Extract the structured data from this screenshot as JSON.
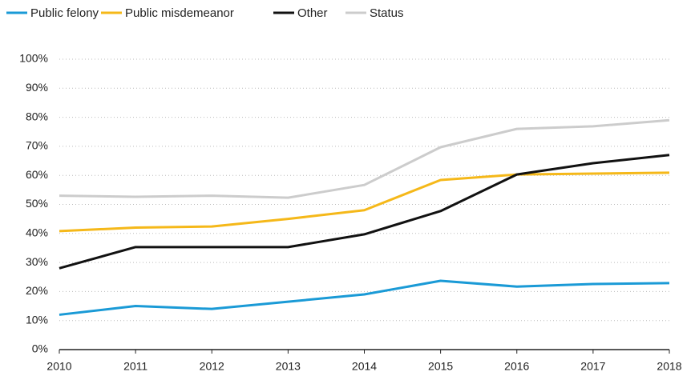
{
  "chart_data": {
    "type": "line",
    "x": [
      2010,
      2011,
      2012,
      2013,
      2014,
      2015,
      2016,
      2017,
      2018
    ],
    "xlim": [
      2010,
      2018
    ],
    "xticks": [
      2010,
      2011,
      2012,
      2013,
      2014,
      2015,
      2016,
      2017,
      2018
    ],
    "ylim": [
      0,
      100
    ],
    "yticks": [
      {
        "value": 0,
        "label": "0%"
      },
      {
        "value": 10,
        "label": "10%"
      },
      {
        "value": 20,
        "label": "20%"
      },
      {
        "value": 30,
        "label": "30%"
      },
      {
        "value": 40,
        "label": "40%"
      },
      {
        "value": 50,
        "label": "50%"
      },
      {
        "value": 60,
        "label": "60%"
      },
      {
        "value": 70,
        "label": "70%"
      },
      {
        "value": 80,
        "label": "80%"
      },
      {
        "value": 90,
        "label": "90%"
      },
      {
        "value": 100,
        "label": "100%"
      }
    ],
    "grid": true,
    "legend": "top",
    "series": [
      {
        "name": "Public felony",
        "color": "#1a9ad6",
        "values": [
          12,
          15,
          14,
          16.5,
          19,
          23.7,
          21.7,
          22.6,
          22.9
        ]
      },
      {
        "name": "Public misdemeanor",
        "color": "#f5b819",
        "values": [
          40.8,
          42,
          42.4,
          45,
          48,
          58.4,
          60.3,
          60.6,
          60.9
        ]
      },
      {
        "name": "Other",
        "color": "#111111",
        "values": [
          28,
          35.3,
          35.3,
          35.3,
          39.7,
          47.7,
          60.3,
          64.2,
          67
        ]
      },
      {
        "name": "Status",
        "color": "#cccccc",
        "values": [
          53,
          52.6,
          53,
          52.3,
          56.7,
          69.7,
          76,
          76.9,
          79
        ]
      }
    ]
  }
}
